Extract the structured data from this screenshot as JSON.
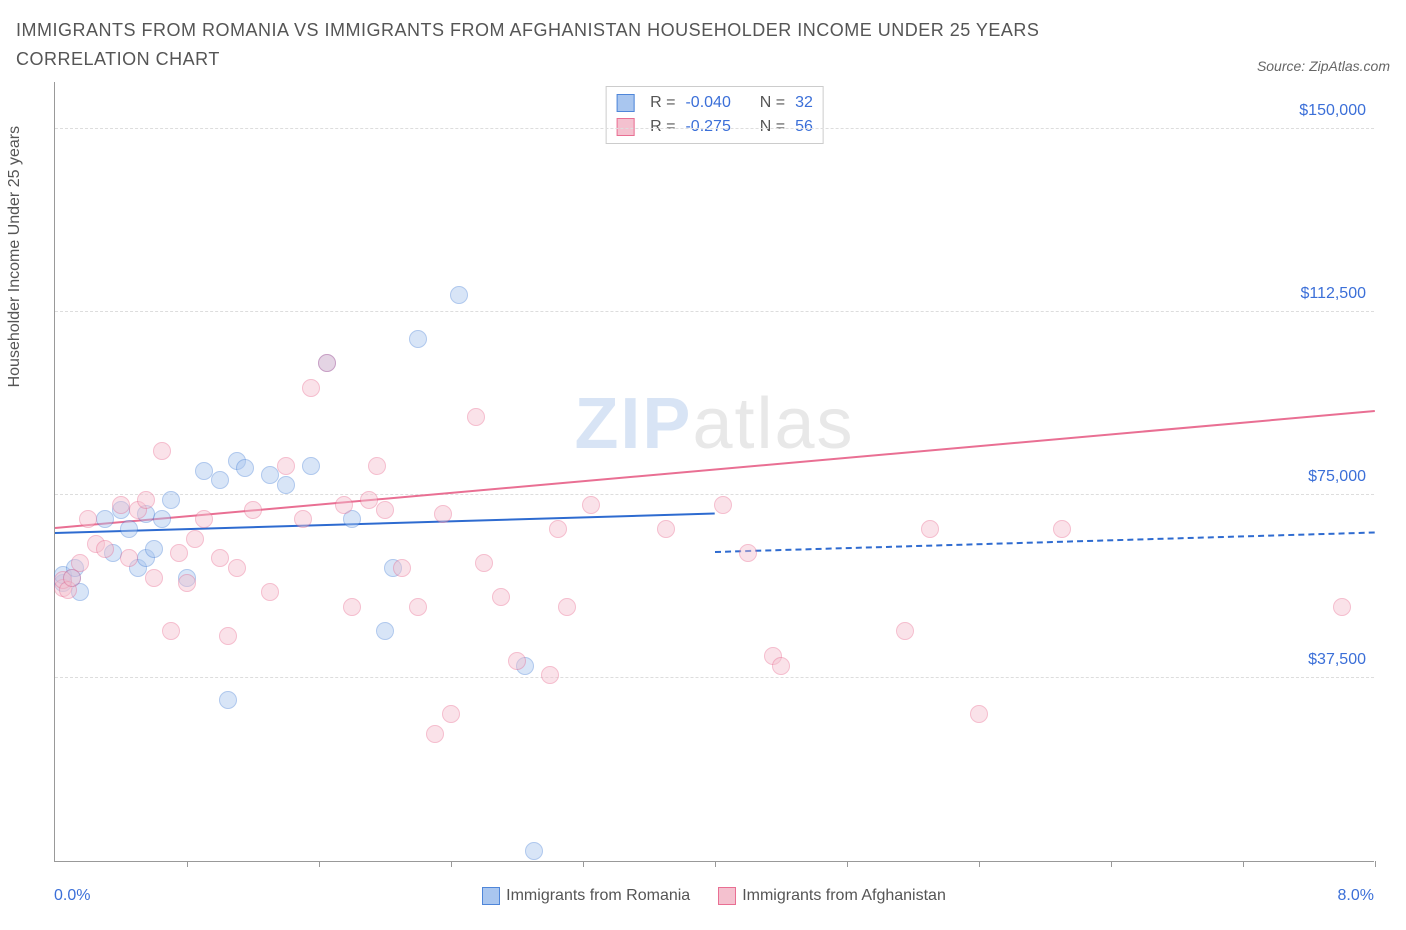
{
  "title": "IMMIGRANTS FROM ROMANIA VS IMMIGRANTS FROM AFGHANISTAN HOUSEHOLDER INCOME UNDER 25 YEARS CORRELATION CHART",
  "source_label": "Source: ZipAtlas.com",
  "ylabel": "Householder Income Under 25 years",
  "watermark_a": "ZIP",
  "watermark_b": "atlas",
  "chart": {
    "type": "scatter",
    "background_color": "#ffffff",
    "grid_color": "#dddddd",
    "axis_color": "#999999",
    "tick_label_color": "#3b6fd8",
    "label_color": "#555555",
    "label_fontsize": 16,
    "title_fontsize": 18,
    "xlim": [
      0.0,
      8.0
    ],
    "ylim": [
      0,
      160000
    ],
    "yticks": [
      37500,
      75000,
      112500,
      150000
    ],
    "ytick_labels": [
      "$37,500",
      "$75,000",
      "$112,500",
      "$150,000"
    ],
    "xtick_positions": [
      0.8,
      1.6,
      2.4,
      3.2,
      4.0,
      4.8,
      5.6,
      6.4,
      7.2,
      8.0
    ],
    "x_start_label": "0.0%",
    "x_end_label": "8.0%",
    "point_radius": 9,
    "point_opacity": 0.45,
    "point_border_width": 1.2,
    "series": [
      {
        "key": "romania",
        "label": "Immigrants from Romania",
        "color_fill": "#a9c6ef",
        "color_stroke": "#4f86d9",
        "R": "-0.040",
        "N": "32",
        "trend": {
          "x1": 0.0,
          "y1": 67000,
          "x2": 4.0,
          "y2": 63000,
          "extend_to": 8.0,
          "extend_y": 59000,
          "color": "#2e6bd0",
          "width": 2
        },
        "points": [
          [
            0.05,
            57000
          ],
          [
            0.05,
            58500
          ],
          [
            0.1,
            58000
          ],
          [
            0.12,
            60000
          ],
          [
            0.15,
            55000
          ],
          [
            0.3,
            70000
          ],
          [
            0.35,
            63000
          ],
          [
            0.4,
            72000
          ],
          [
            0.45,
            68000
          ],
          [
            0.5,
            60000
          ],
          [
            0.55,
            71000
          ],
          [
            0.55,
            62000
          ],
          [
            0.6,
            64000
          ],
          [
            0.65,
            70000
          ],
          [
            0.7,
            74000
          ],
          [
            0.8,
            58000
          ],
          [
            0.9,
            80000
          ],
          [
            1.0,
            78000
          ],
          [
            1.05,
            33000
          ],
          [
            1.1,
            82000
          ],
          [
            1.15,
            80500
          ],
          [
            1.3,
            79000
          ],
          [
            1.4,
            77000
          ],
          [
            1.55,
            81000
          ],
          [
            1.65,
            102000
          ],
          [
            1.8,
            70000
          ],
          [
            2.0,
            47000
          ],
          [
            2.05,
            60000
          ],
          [
            2.2,
            107000
          ],
          [
            2.45,
            116000
          ],
          [
            2.85,
            40000
          ],
          [
            2.9,
            2000
          ]
        ]
      },
      {
        "key": "afghanistan",
        "label": "Immigrants from Afghanistan",
        "color_fill": "#f4c1cf",
        "color_stroke": "#e96f93",
        "R": "-0.275",
        "N": "56",
        "trend": {
          "x1": 0.0,
          "y1": 68000,
          "x2": 8.0,
          "y2": 44000,
          "color": "#e96f93",
          "width": 2
        },
        "points": [
          [
            0.05,
            56000
          ],
          [
            0.05,
            57500
          ],
          [
            0.08,
            55500
          ],
          [
            0.1,
            58000
          ],
          [
            0.15,
            61000
          ],
          [
            0.2,
            70000
          ],
          [
            0.25,
            65000
          ],
          [
            0.3,
            64000
          ],
          [
            0.4,
            73000
          ],
          [
            0.45,
            62000
          ],
          [
            0.5,
            72000
          ],
          [
            0.55,
            74000
          ],
          [
            0.6,
            58000
          ],
          [
            0.65,
            84000
          ],
          [
            0.7,
            47000
          ],
          [
            0.75,
            63000
          ],
          [
            0.8,
            57000
          ],
          [
            0.85,
            66000
          ],
          [
            0.9,
            70000
          ],
          [
            1.0,
            62000
          ],
          [
            1.05,
            46000
          ],
          [
            1.1,
            60000
          ],
          [
            1.2,
            72000
          ],
          [
            1.3,
            55000
          ],
          [
            1.4,
            81000
          ],
          [
            1.5,
            70000
          ],
          [
            1.55,
            97000
          ],
          [
            1.65,
            102000
          ],
          [
            1.75,
            73000
          ],
          [
            1.8,
            52000
          ],
          [
            1.9,
            74000
          ],
          [
            1.95,
            81000
          ],
          [
            2.0,
            72000
          ],
          [
            2.1,
            60000
          ],
          [
            2.2,
            52000
          ],
          [
            2.3,
            26000
          ],
          [
            2.35,
            71000
          ],
          [
            2.4,
            30000
          ],
          [
            2.55,
            91000
          ],
          [
            2.6,
            61000
          ],
          [
            2.7,
            54000
          ],
          [
            2.8,
            41000
          ],
          [
            3.0,
            38000
          ],
          [
            3.05,
            68000
          ],
          [
            3.1,
            52000
          ],
          [
            3.25,
            73000
          ],
          [
            3.7,
            68000
          ],
          [
            4.05,
            73000
          ],
          [
            4.2,
            63000
          ],
          [
            4.35,
            42000
          ],
          [
            4.4,
            40000
          ],
          [
            5.15,
            47000
          ],
          [
            5.3,
            68000
          ],
          [
            5.6,
            30000
          ],
          [
            6.1,
            68000
          ],
          [
            7.8,
            52000
          ]
        ]
      }
    ]
  }
}
